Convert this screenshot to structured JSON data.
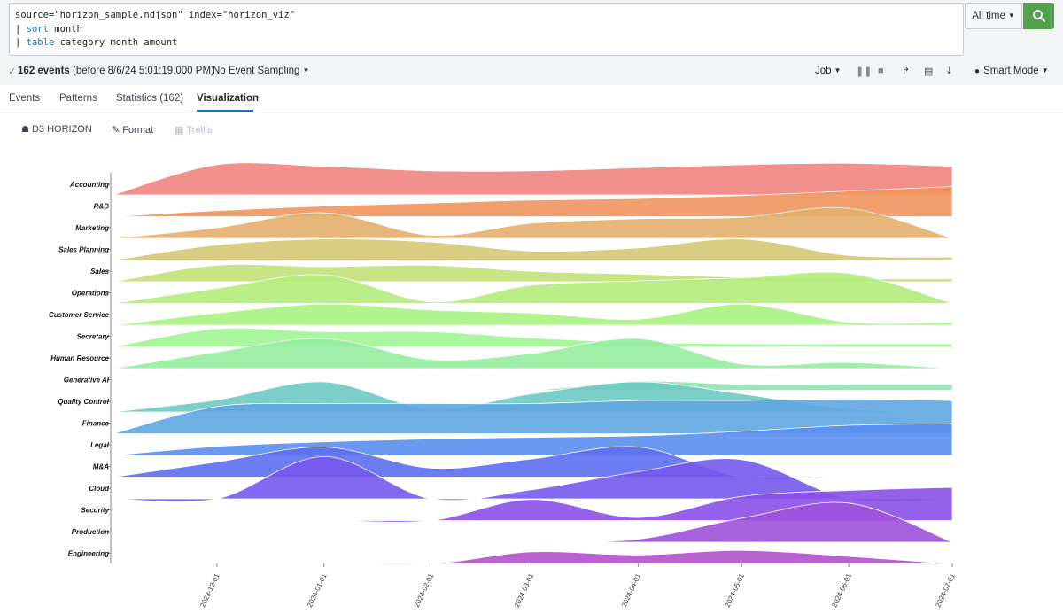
{
  "search": {
    "query_lines": [
      {
        "pre": "source=\"horizon_sample.ndjson\" index=\"horizon_viz\"",
        "kw": "",
        "post": ""
      },
      {
        "pre": "| ",
        "kw": "sort",
        "post": " month"
      },
      {
        "pre": "| ",
        "kw": "table",
        "post": " category month amount"
      }
    ],
    "time_range": "All time"
  },
  "status": {
    "events_count": "162 events",
    "events_suffix": "(before 8/6/24 5:01:19.000 PM)",
    "sampling": "No Event Sampling",
    "job": "Job",
    "mode": "Smart Mode"
  },
  "tabs": [
    {
      "label": "Events",
      "active": false
    },
    {
      "label": "Patterns",
      "active": false
    },
    {
      "label": "Statistics (162)",
      "active": false
    },
    {
      "label": "Visualization",
      "active": true
    }
  ],
  "viz_toolbar": {
    "viz_type": "D3 HORIZON",
    "format": "Format",
    "trellis": "Trellis"
  },
  "chart_data": {
    "type": "area",
    "chart_style": "ridgeline",
    "x_ticks": [
      "2023-12-01",
      "2024-01-01",
      "2024-02-01",
      "2024-03-01",
      "2024-04-01",
      "2024-05-01",
      "2024-06-01",
      "2024-07-01"
    ],
    "xlim": [
      "2023-11-01",
      "2024-07-01"
    ],
    "series": [
      {
        "name": "Accounting",
        "color": "#f0837d",
        "x": [
          "2023-11-01",
          "2023-12-01",
          "2024-01-01",
          "2024-02-01",
          "2024-03-01",
          "2024-04-01",
          "2024-05-01",
          "2024-06-01",
          "2024-07-01"
        ],
        "values": [
          0,
          1.0,
          0.95,
          0.8,
          0.8,
          0.9,
          1.0,
          1.05,
          0.95
        ]
      },
      {
        "name": "R&D",
        "color": "#f0955e",
        "x": [
          "2023-11-01",
          "2023-12-01",
          "2024-01-01",
          "2024-02-01",
          "2024-03-01",
          "2024-04-01",
          "2024-05-01",
          "2024-06-01",
          "2024-07-01"
        ],
        "values": [
          0,
          0.2,
          0.35,
          0.45,
          0.55,
          0.6,
          0.7,
          0.85,
          1.0
        ]
      },
      {
        "name": "Marketing",
        "color": "#e3ae6c",
        "x": [
          "2023-11-01",
          "2023-12-01",
          "2024-01-01",
          "2024-02-01",
          "2024-03-01",
          "2024-04-01",
          "2024-05-01",
          "2024-06-01",
          "2024-07-01"
        ],
        "values": [
          0,
          0.35,
          0.85,
          0.1,
          0.5,
          0.65,
          0.7,
          1.0,
          0
        ]
      },
      {
        "name": "Sales Planning",
        "color": "#d4c872",
        "x": [
          "2023-11-01",
          "2023-12-01",
          "2024-01-01",
          "2024-02-01",
          "2024-03-01",
          "2024-04-01",
          "2024-05-01",
          "2024-06-01",
          "2024-07-01"
        ],
        "values": [
          0,
          0.5,
          0.7,
          0.6,
          0.3,
          0.4,
          0.7,
          0.15,
          0.1
        ]
      },
      {
        "name": "Sales",
        "color": "#c3e07a",
        "x": [
          "2023-11-01",
          "2023-12-01",
          "2024-01-01",
          "2024-02-01",
          "2024-03-01",
          "2024-04-01",
          "2024-05-01",
          "2024-06-01",
          "2024-07-01"
        ],
        "values": [
          0,
          0.55,
          0.5,
          0.55,
          0.35,
          0.25,
          0.15,
          0.1,
          0.1
        ]
      },
      {
        "name": "Operations",
        "color": "#b4ec7b",
        "x": [
          "2023-11-01",
          "2023-12-01",
          "2024-01-01",
          "2024-02-01",
          "2024-03-01",
          "2024-04-01",
          "2024-05-01",
          "2024-06-01",
          "2024-07-01"
        ],
        "values": [
          0,
          0.5,
          0.95,
          0.05,
          0.6,
          0.75,
          0.85,
          1.0,
          0
        ]
      },
      {
        "name": "Customer Service",
        "color": "#a9f382",
        "x": [
          "2023-11-01",
          "2023-12-01",
          "2024-01-01",
          "2024-02-01",
          "2024-03-01",
          "2024-04-01",
          "2024-05-01",
          "2024-06-01",
          "2024-07-01"
        ],
        "values": [
          0,
          0.4,
          0.7,
          0.5,
          0.4,
          0.2,
          0.7,
          0.1,
          0.1
        ]
      },
      {
        "name": "Secretary",
        "color": "#a1f595",
        "x": [
          "2023-11-01",
          "2023-12-01",
          "2024-01-01",
          "2024-02-01",
          "2024-03-01",
          "2024-04-01",
          "2024-05-01",
          "2024-06-01",
          "2024-07-01"
        ],
        "values": [
          0,
          0.6,
          0.5,
          0.5,
          0.3,
          0.15,
          0.1,
          0.1,
          0.1
        ]
      },
      {
        "name": "Human Resource",
        "color": "#95eda0",
        "x": [
          "2023-11-01",
          "2023-12-01",
          "2024-01-01",
          "2024-02-01",
          "2024-03-01",
          "2024-04-01",
          "2024-05-01",
          "2024-06-01",
          "2024-07-01"
        ],
        "values": [
          0,
          0.55,
          1.0,
          0.3,
          0.5,
          1.0,
          0.15,
          0.2,
          0
        ]
      },
      {
        "name": "Generative AI",
        "color": "#8fe3b0",
        "x": [
          "2023-11-01",
          "2023-12-01",
          "2024-01-01",
          "2024-02-01",
          "2024-03-01",
          "2024-04-01",
          "2024-05-01",
          "2024-06-01",
          "2024-07-01"
        ],
        "values": [
          0,
          0,
          0,
          0,
          0,
          0.3,
          0.2,
          0.2,
          0.2
        ]
      },
      {
        "name": "Quality Control",
        "color": "#6ec9c2",
        "x": [
          "2023-11-01",
          "2023-12-01",
          "2024-01-01",
          "2024-02-01",
          "2024-03-01",
          "2024-04-01",
          "2024-05-01",
          "2024-06-01",
          "2024-07-01"
        ],
        "values": [
          0,
          0.4,
          1.0,
          0.1,
          0.6,
          1.0,
          0.6,
          0.1,
          0
        ]
      },
      {
        "name": "Finance",
        "color": "#5fa6e0",
        "x": [
          "2023-11-01",
          "2023-12-01",
          "2024-01-01",
          "2024-02-01",
          "2024-03-01",
          "2024-04-01",
          "2024-05-01",
          "2024-06-01",
          "2024-07-01"
        ],
        "values": [
          0,
          0.9,
          1.0,
          1.0,
          1.0,
          1.1,
          1.1,
          1.15,
          1.1
        ]
      },
      {
        "name": "Legal",
        "color": "#5a8ef0",
        "x": [
          "2023-11-01",
          "2023-12-01",
          "2024-01-01",
          "2024-02-01",
          "2024-03-01",
          "2024-04-01",
          "2024-05-01",
          "2024-06-01",
          "2024-07-01"
        ],
        "values": [
          0,
          0.3,
          0.45,
          0.55,
          0.6,
          0.65,
          0.8,
          1.0,
          1.05
        ]
      },
      {
        "name": "M&A",
        "color": "#5e6ef0",
        "x": [
          "2023-11-01",
          "2023-12-01",
          "2024-01-01",
          "2024-02-01",
          "2024-03-01",
          "2024-04-01",
          "2024-05-01",
          "2024-06-01",
          "2024-07-01"
        ],
        "values": [
          0,
          0.5,
          1.0,
          0.3,
          0.6,
          1.0,
          0,
          0,
          0
        ]
      },
      {
        "name": "Cloud",
        "color": "#7559ee",
        "x": [
          "2023-11-01",
          "2023-12-01",
          "2024-01-01",
          "2024-02-01",
          "2024-03-01",
          "2024-04-01",
          "2024-05-01",
          "2024-06-01",
          "2024-07-01"
        ],
        "values": [
          0,
          0,
          1.4,
          0,
          0.3,
          0.9,
          1.3,
          0,
          0
        ]
      },
      {
        "name": "Security",
        "color": "#8a4fe8",
        "x": [
          "2023-11-01",
          "2023-12-01",
          "2024-01-01",
          "2024-02-01",
          "2024-03-01",
          "2024-04-01",
          "2024-05-01",
          "2024-06-01",
          "2024-07-01"
        ],
        "values": [
          0,
          0,
          0,
          0,
          0.7,
          0.1,
          0.8,
          1.0,
          1.1
        ]
      },
      {
        "name": "Production",
        "color": "#9d52da",
        "x": [
          "2023-11-01",
          "2023-12-01",
          "2024-01-01",
          "2024-02-01",
          "2024-03-01",
          "2024-04-01",
          "2024-05-01",
          "2024-06-01",
          "2024-07-01"
        ],
        "values": [
          0,
          0,
          0,
          0,
          0,
          0.1,
          0.8,
          1.3,
          0
        ]
      },
      {
        "name": "Engineering",
        "color": "#b152cc",
        "x": [
          "2023-11-01",
          "2023-12-01",
          "2024-01-01",
          "2024-02-01",
          "2024-03-01",
          "2024-04-01",
          "2024-05-01",
          "2024-06-01",
          "2024-07-01"
        ],
        "values": [
          0,
          0,
          0,
          0,
          0.4,
          0.3,
          0.45,
          0.25,
          0
        ]
      }
    ]
  }
}
